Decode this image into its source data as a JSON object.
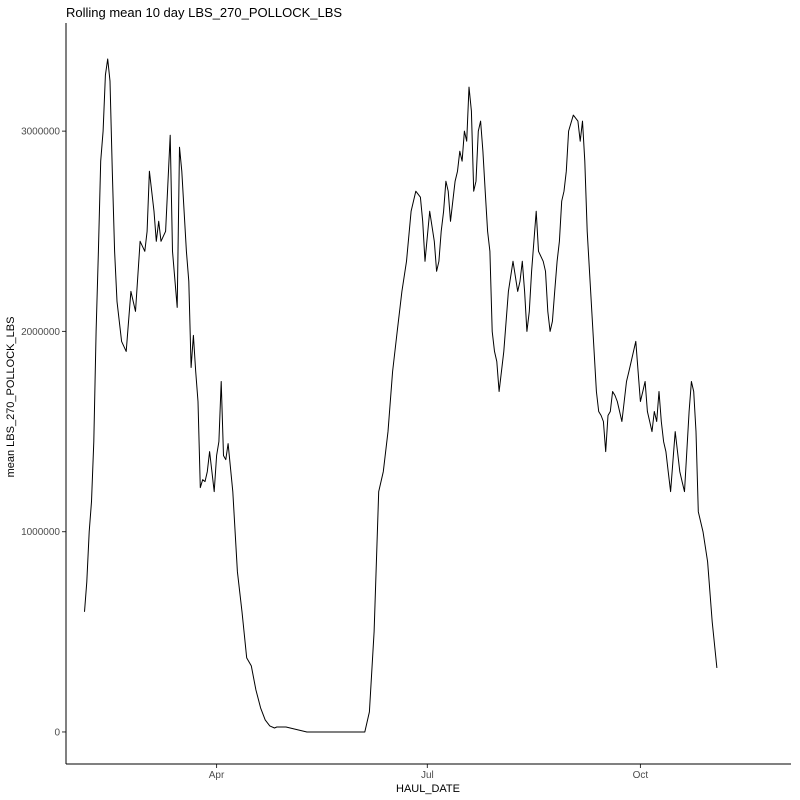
{
  "chart_data": {
    "type": "line",
    "title": "Rolling mean 10 day LBS_270_POLLOCK_LBS",
    "xlabel": "HAUL_DATE",
    "ylabel": "mean LBS_270_POLLOCK_LBS",
    "xlim": [
      "2023-01-26",
      "2023-12-05"
    ],
    "ylim": [
      -160000,
      3540000
    ],
    "x_ticks": [
      {
        "value": "2023-04-01",
        "label": "Apr"
      },
      {
        "value": "2023-07-01",
        "label": "Jul"
      },
      {
        "value": "2023-10-01",
        "label": "Oct"
      }
    ],
    "y_ticks": [
      {
        "value": 0,
        "label": "0"
      },
      {
        "value": 1000000,
        "label": "1000000"
      },
      {
        "value": 2000000,
        "label": "2000000"
      },
      {
        "value": 3000000,
        "label": "3000000"
      }
    ],
    "grid": false,
    "legend": "none",
    "line_color": "#000000",
    "series": [
      {
        "x": [
          "2023-02-03",
          "2023-02-04",
          "2023-02-05",
          "2023-02-06",
          "2023-02-07",
          "2023-02-08",
          "2023-02-09",
          "2023-02-10",
          "2023-02-11",
          "2023-02-12",
          "2023-02-13",
          "2023-02-14",
          "2023-02-15",
          "2023-02-16",
          "2023-02-17",
          "2023-02-19",
          "2023-02-21",
          "2023-02-23",
          "2023-02-25",
          "2023-02-27",
          "2023-03-01",
          "2023-03-02",
          "2023-03-03",
          "2023-03-05",
          "2023-03-06",
          "2023-03-07",
          "2023-03-08",
          "2023-03-10",
          "2023-03-12",
          "2023-03-13",
          "2023-03-15",
          "2023-03-16",
          "2023-03-17",
          "2023-03-18",
          "2023-03-19",
          "2023-03-20",
          "2023-03-21",
          "2023-03-22",
          "2023-03-23",
          "2023-03-24",
          "2023-03-25",
          "2023-03-26",
          "2023-03-27",
          "2023-03-28",
          "2023-03-29",
          "2023-03-30",
          "2023-03-31",
          "2023-04-01",
          "2023-04-02",
          "2023-04-03",
          "2023-04-04",
          "2023-04-05",
          "2023-04-06",
          "2023-04-08",
          "2023-04-10",
          "2023-04-12",
          "2023-04-14",
          "2023-04-16",
          "2023-04-18",
          "2023-04-20",
          "2023-04-22",
          "2023-04-24",
          "2023-04-26",
          "2023-04-27",
          "2023-05-01",
          "2023-05-10",
          "2023-05-20",
          "2023-05-30",
          "2023-06-04",
          "2023-06-06",
          "2023-06-08",
          "2023-06-10",
          "2023-06-12",
          "2023-06-14",
          "2023-06-16",
          "2023-06-18",
          "2023-06-20",
          "2023-06-22",
          "2023-06-24",
          "2023-06-26",
          "2023-06-28",
          "2023-06-29",
          "2023-06-30",
          "2023-07-02",
          "2023-07-04",
          "2023-07-05",
          "2023-07-06",
          "2023-07-07",
          "2023-07-08",
          "2023-07-09",
          "2023-07-10",
          "2023-07-11",
          "2023-07-12",
          "2023-07-13",
          "2023-07-14",
          "2023-07-15",
          "2023-07-16",
          "2023-07-17",
          "2023-07-18",
          "2023-07-19",
          "2023-07-20",
          "2023-07-21",
          "2023-07-22",
          "2023-07-23",
          "2023-07-24",
          "2023-07-25",
          "2023-07-26",
          "2023-07-27",
          "2023-07-28",
          "2023-07-29",
          "2023-07-30",
          "2023-07-31",
          "2023-08-01",
          "2023-08-03",
          "2023-08-05",
          "2023-08-07",
          "2023-08-09",
          "2023-08-10",
          "2023-08-11",
          "2023-08-12",
          "2023-08-13",
          "2023-08-14",
          "2023-08-15",
          "2023-08-16",
          "2023-08-17",
          "2023-08-18",
          "2023-08-20",
          "2023-08-21",
          "2023-08-22",
          "2023-08-23",
          "2023-08-24",
          "2023-08-25",
          "2023-08-26",
          "2023-08-27",
          "2023-08-28",
          "2023-08-29",
          "2023-08-30",
          "2023-08-31",
          "2023-09-02",
          "2023-09-04",
          "2023-09-05",
          "2023-09-06",
          "2023-09-07",
          "2023-09-08",
          "2023-09-09",
          "2023-09-10",
          "2023-09-11",
          "2023-09-12",
          "2023-09-13",
          "2023-09-14",
          "2023-09-15",
          "2023-09-16",
          "2023-09-17",
          "2023-09-18",
          "2023-09-19",
          "2023-09-20",
          "2023-09-21",
          "2023-09-22",
          "2023-09-23",
          "2023-09-24",
          "2023-09-25",
          "2023-09-26",
          "2023-09-27",
          "2023-09-28",
          "2023-09-29",
          "2023-09-30",
          "2023-10-01",
          "2023-10-02",
          "2023-10-03",
          "2023-10-04",
          "2023-10-05",
          "2023-10-06",
          "2023-10-07",
          "2023-10-08",
          "2023-10-09",
          "2023-10-10",
          "2023-10-11",
          "2023-10-12",
          "2023-10-13",
          "2023-10-14",
          "2023-10-15",
          "2023-10-16",
          "2023-10-17",
          "2023-10-18",
          "2023-10-19",
          "2023-10-20",
          "2023-10-21",
          "2023-10-22",
          "2023-10-23",
          "2023-10-24",
          "2023-10-25",
          "2023-10-26",
          "2023-10-28",
          "2023-10-30",
          "2023-11-01",
          "2023-11-03"
        ],
        "y": [
          600000,
          750000,
          1000000,
          1150000,
          1450000,
          2000000,
          2400000,
          2850000,
          3000000,
          3280000,
          3360000,
          3250000,
          2800000,
          2400000,
          2150000,
          1950000,
          1900000,
          2200000,
          2100000,
          2450000,
          2400000,
          2500000,
          2800000,
          2600000,
          2450000,
          2550000,
          2450000,
          2500000,
          2980000,
          2400000,
          2120000,
          2920000,
          2800000,
          2600000,
          2400000,
          2250000,
          1820000,
          1980000,
          1800000,
          1650000,
          1220000,
          1260000,
          1250000,
          1300000,
          1400000,
          1300000,
          1200000,
          1380000,
          1450000,
          1750000,
          1380000,
          1360000,
          1440000,
          1200000,
          800000,
          600000,
          370000,
          330000,
          210000,
          120000,
          60000,
          30000,
          20000,
          25000,
          25000,
          0,
          0,
          0,
          0,
          100000,
          500000,
          1200000,
          1300000,
          1500000,
          1800000,
          2000000,
          2200000,
          2350000,
          2600000,
          2700000,
          2670000,
          2550000,
          2350000,
          2600000,
          2450000,
          2300000,
          2350000,
          2500000,
          2600000,
          2750000,
          2700000,
          2550000,
          2650000,
          2750000,
          2800000,
          2900000,
          2850000,
          3000000,
          2950000,
          3220000,
          3100000,
          2700000,
          2750000,
          3000000,
          3050000,
          2900000,
          2700000,
          2500000,
          2400000,
          2000000,
          1900000,
          1850000,
          1700000,
          1900000,
          2200000,
          2350000,
          2200000,
          2250000,
          2350000,
          2200000,
          2000000,
          2100000,
          2300000,
          2450000,
          2600000,
          2400000,
          2350000,
          2300000,
          2100000,
          2000000,
          2050000,
          2200000,
          2350000,
          2450000,
          2650000,
          2700000,
          2800000,
          3000000,
          3080000,
          3050000,
          2950000,
          3050000,
          2850000,
          2500000,
          2300000,
          2100000,
          1900000,
          1700000,
          1600000,
          1580000,
          1550000,
          1400000,
          1580000,
          1600000,
          1700000,
          1680000,
          1650000,
          1600000,
          1550000,
          1650000,
          1750000,
          1800000,
          1850000,
          1900000,
          1950000,
          1800000,
          1650000,
          1700000,
          1750000,
          1600000,
          1550000,
          1500000,
          1600000,
          1550000,
          1700000,
          1550000,
          1450000,
          1400000,
          1300000,
          1200000,
          1350000,
          1500000,
          1400000,
          1300000,
          1250000,
          1200000,
          1400000,
          1600000,
          1750000,
          1700000,
          1500000,
          1100000,
          1000000,
          850000,
          550000,
          320000
        ]
      }
    ]
  }
}
